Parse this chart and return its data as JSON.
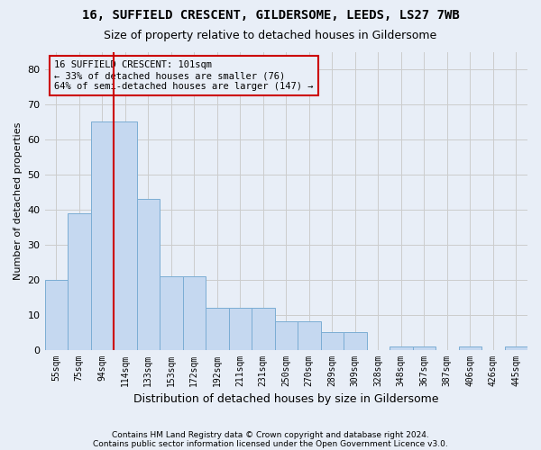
{
  "title1": "16, SUFFIELD CRESCENT, GILDERSOME, LEEDS, LS27 7WB",
  "title2": "Size of property relative to detached houses in Gildersome",
  "xlabel": "Distribution of detached houses by size in Gildersome",
  "ylabel": "Number of detached properties",
  "footer1": "Contains HM Land Registry data © Crown copyright and database right 2024.",
  "footer2": "Contains public sector information licensed under the Open Government Licence v3.0.",
  "categories": [
    "55sqm",
    "75sqm",
    "94sqm",
    "114sqm",
    "133sqm",
    "153sqm",
    "172sqm",
    "192sqm",
    "211sqm",
    "231sqm",
    "250sqm",
    "270sqm",
    "289sqm",
    "309sqm",
    "328sqm",
    "348sqm",
    "367sqm",
    "387sqm",
    "406sqm",
    "426sqm",
    "445sqm"
  ],
  "values": [
    20,
    39,
    65,
    65,
    43,
    21,
    21,
    12,
    12,
    12,
    8,
    8,
    5,
    5,
    0,
    1,
    1,
    0,
    1,
    0,
    1
  ],
  "bar_color": "#c5d8f0",
  "bar_edge_color": "#7badd4",
  "grid_color": "#cccccc",
  "annotation_box_color": "#cc0000",
  "vline_color": "#cc0000",
  "vline_x": 2.5,
  "annotation_line1": "16 SUFFIELD CRESCENT: 101sqm",
  "annotation_line2": "← 33% of detached houses are smaller (76)",
  "annotation_line3": "64% of semi-detached houses are larger (147) →",
  "ylim": [
    0,
    85
  ],
  "yticks": [
    0,
    10,
    20,
    30,
    40,
    50,
    60,
    70,
    80
  ],
  "background_color": "#e8eef7"
}
